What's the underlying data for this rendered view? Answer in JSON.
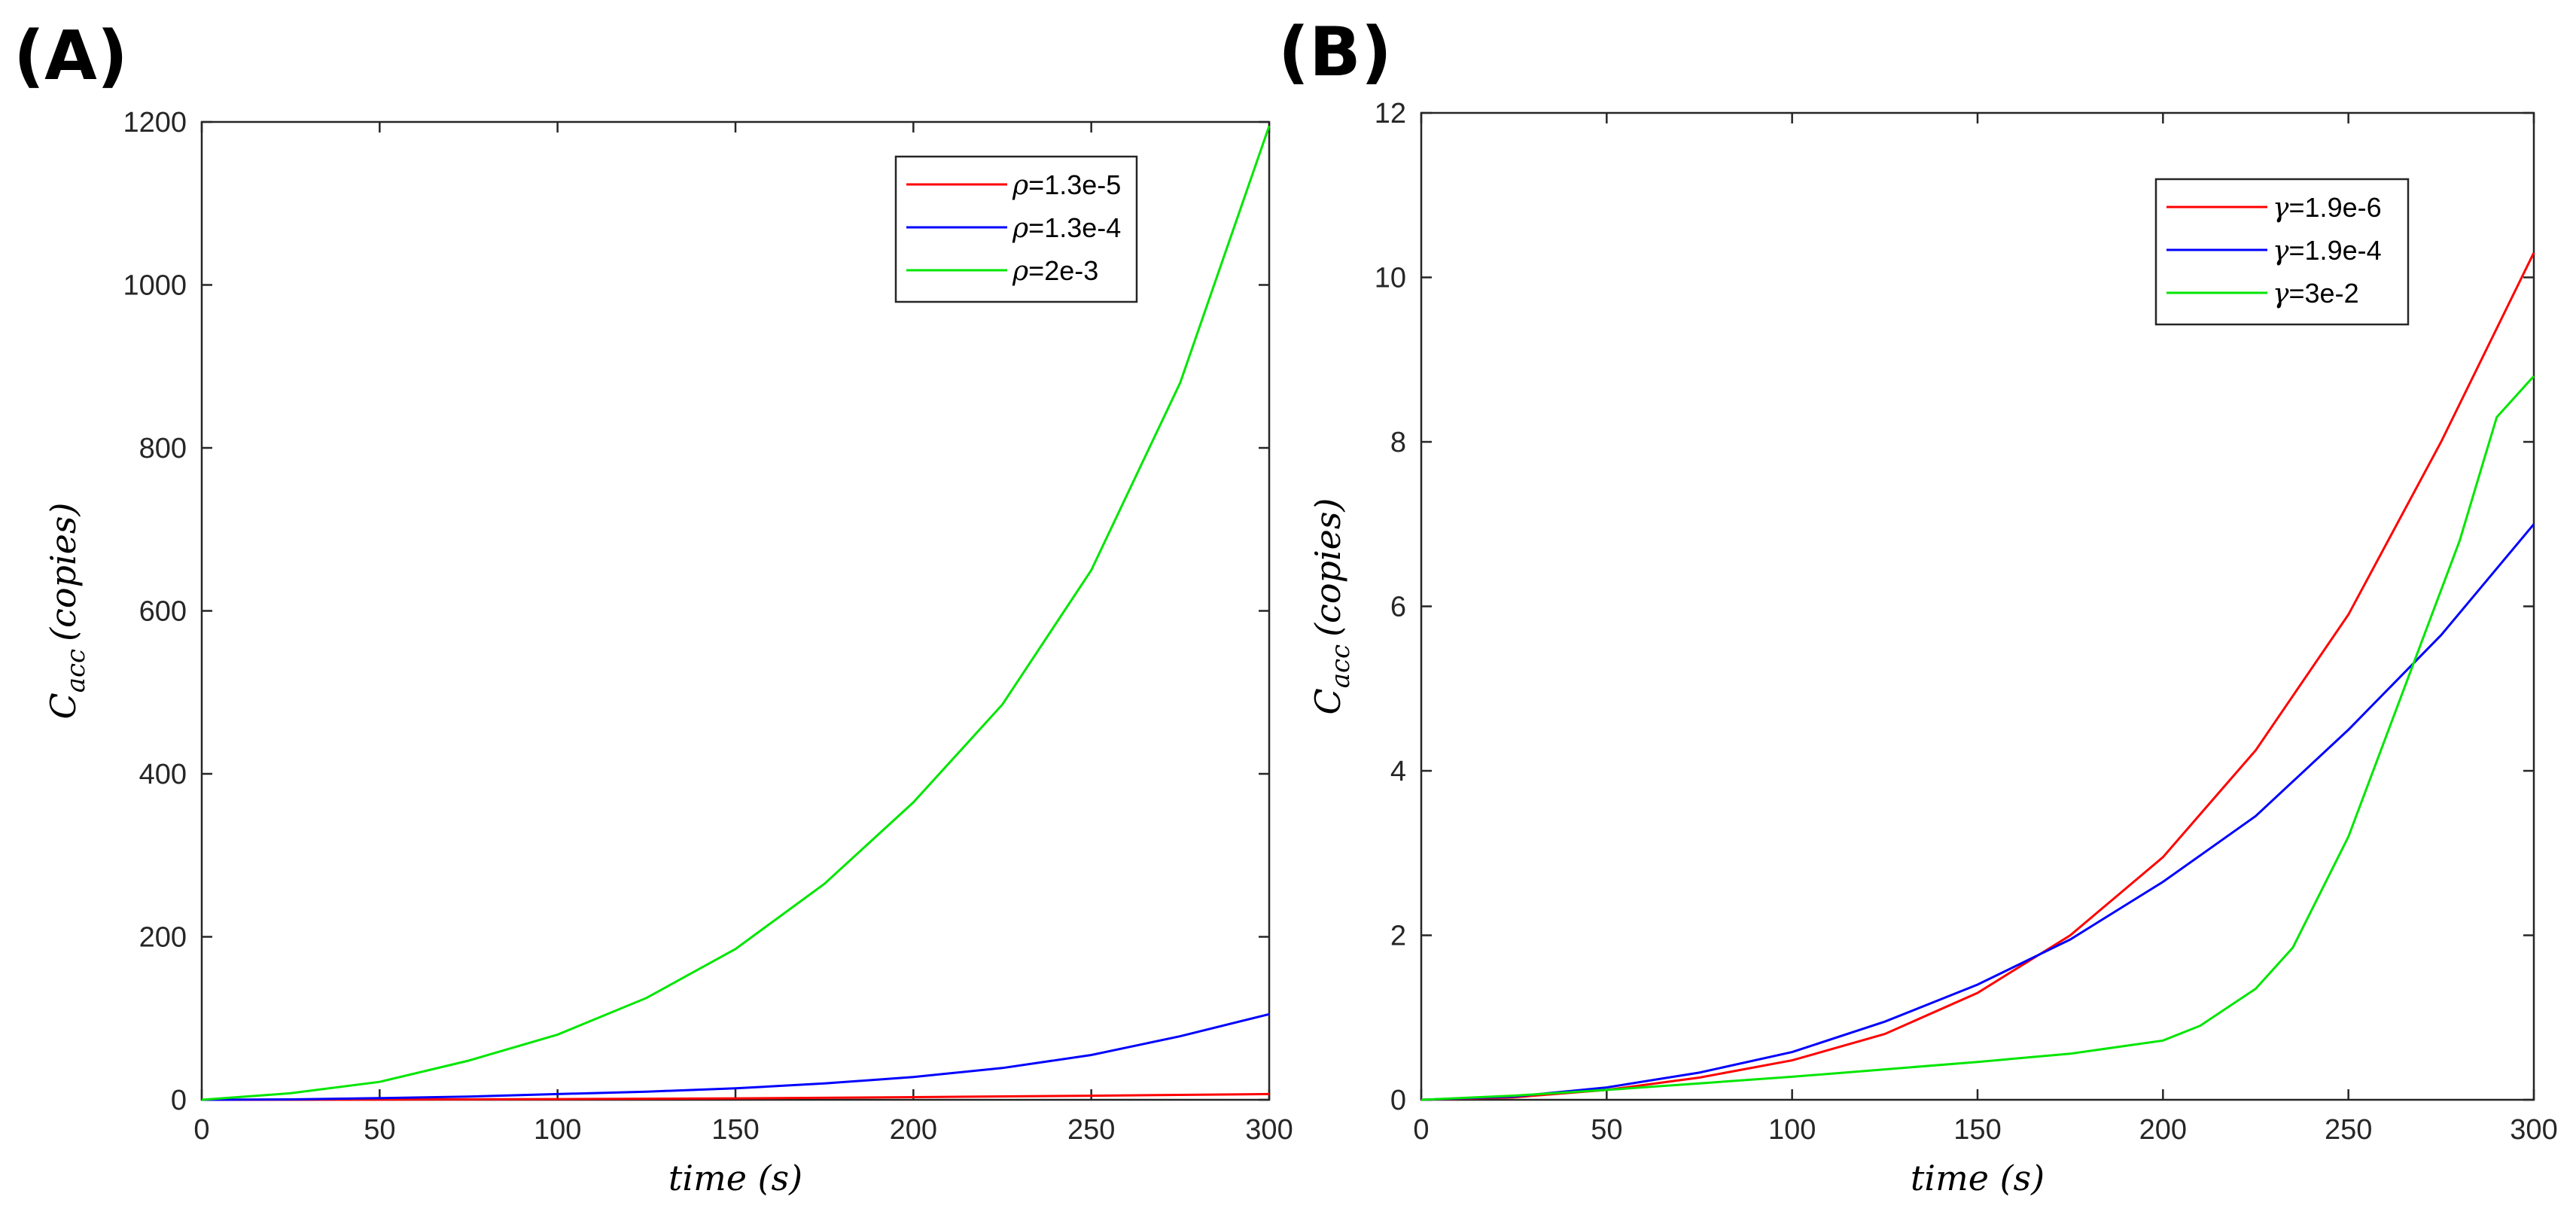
{
  "chart_data": [
    {
      "type": "line",
      "panel": "(A)",
      "xlabel": "time (s)",
      "ylabel": "C_acc (copies)",
      "ylabel_main": "C",
      "ylabel_sub": "acc",
      "ylabel_rest": "(copies)",
      "xlim": [
        0,
        300
      ],
      "ylim": [
        0,
        1200
      ],
      "xticks": [
        0,
        50,
        100,
        150,
        200,
        250,
        300
      ],
      "yticks": [
        0,
        200,
        400,
        600,
        800,
        1000,
        1200
      ],
      "legend_position": "top-right",
      "series": [
        {
          "name": "ρ=1.3e-5",
          "symbol": "ρ",
          "value_label": "=1.3e-5",
          "color": "#ff0000",
          "x": [
            0,
            50,
            100,
            150,
            200,
            250,
            300
          ],
          "y": [
            0,
            0.2,
            0.8,
            1.8,
            3.2,
            5.0,
            7.0
          ]
        },
        {
          "name": "ρ=1.3e-4",
          "symbol": "ρ",
          "value_label": "=1.3e-4",
          "color": "#0000ff",
          "x": [
            0,
            25,
            50,
            75,
            100,
            125,
            150,
            175,
            200,
            225,
            250,
            275,
            300
          ],
          "y": [
            0,
            0.5,
            2,
            4,
            7,
            10,
            14,
            20,
            28,
            39,
            55,
            78,
            105
          ]
        },
        {
          "name": "ρ=2e-3",
          "symbol": "ρ",
          "value_label": "=2e-3",
          "color": "#00e600",
          "x": [
            0,
            25,
            50,
            75,
            100,
            125,
            150,
            175,
            200,
            225,
            250,
            275,
            300
          ],
          "y": [
            0,
            8,
            22,
            48,
            80,
            125,
            185,
            265,
            365,
            485,
            650,
            880,
            1195
          ]
        }
      ]
    },
    {
      "type": "line",
      "panel": "(B)",
      "xlabel": "time (s)",
      "ylabel": "C_acc (copies)",
      "ylabel_main": "C",
      "ylabel_sub": "acc",
      "ylabel_rest": "(copies)",
      "xlim": [
        0,
        300
      ],
      "ylim": [
        0,
        12
      ],
      "xticks": [
        0,
        50,
        100,
        150,
        200,
        250,
        300
      ],
      "yticks": [
        0,
        2,
        4,
        6,
        8,
        10,
        12
      ],
      "legend_position": "top-right",
      "series": [
        {
          "name": "γ=1.9e-6",
          "symbol": "γ",
          "value_label": "=1.9e-6",
          "color": "#ff0000",
          "x": [
            0,
            25,
            50,
            75,
            100,
            125,
            150,
            175,
            200,
            225,
            250,
            275,
            300
          ],
          "y": [
            0,
            0.03,
            0.12,
            0.27,
            0.48,
            0.8,
            1.3,
            2.0,
            2.95,
            4.25,
            5.9,
            8.0,
            10.3
          ]
        },
        {
          "name": "γ=1.9e-4",
          "symbol": "γ",
          "value_label": "=1.9e-4",
          "color": "#0000ff",
          "x": [
            0,
            25,
            50,
            75,
            100,
            125,
            150,
            175,
            200,
            225,
            250,
            275,
            300
          ],
          "y": [
            0,
            0.04,
            0.15,
            0.33,
            0.58,
            0.95,
            1.4,
            1.95,
            2.65,
            3.45,
            4.5,
            5.65,
            7.0
          ]
        },
        {
          "name": "γ=3e-2",
          "symbol": "γ",
          "value_label": "=3e-2",
          "color": "#00e600",
          "x": [
            0,
            25,
            50,
            75,
            100,
            125,
            150,
            175,
            200,
            210,
            225,
            235,
            250,
            265,
            280,
            290,
            300
          ],
          "y": [
            0,
            0.05,
            0.12,
            0.2,
            0.28,
            0.37,
            0.46,
            0.56,
            0.72,
            0.9,
            1.35,
            1.85,
            3.2,
            5.0,
            6.8,
            8.3,
            8.8
          ]
        }
      ]
    }
  ]
}
